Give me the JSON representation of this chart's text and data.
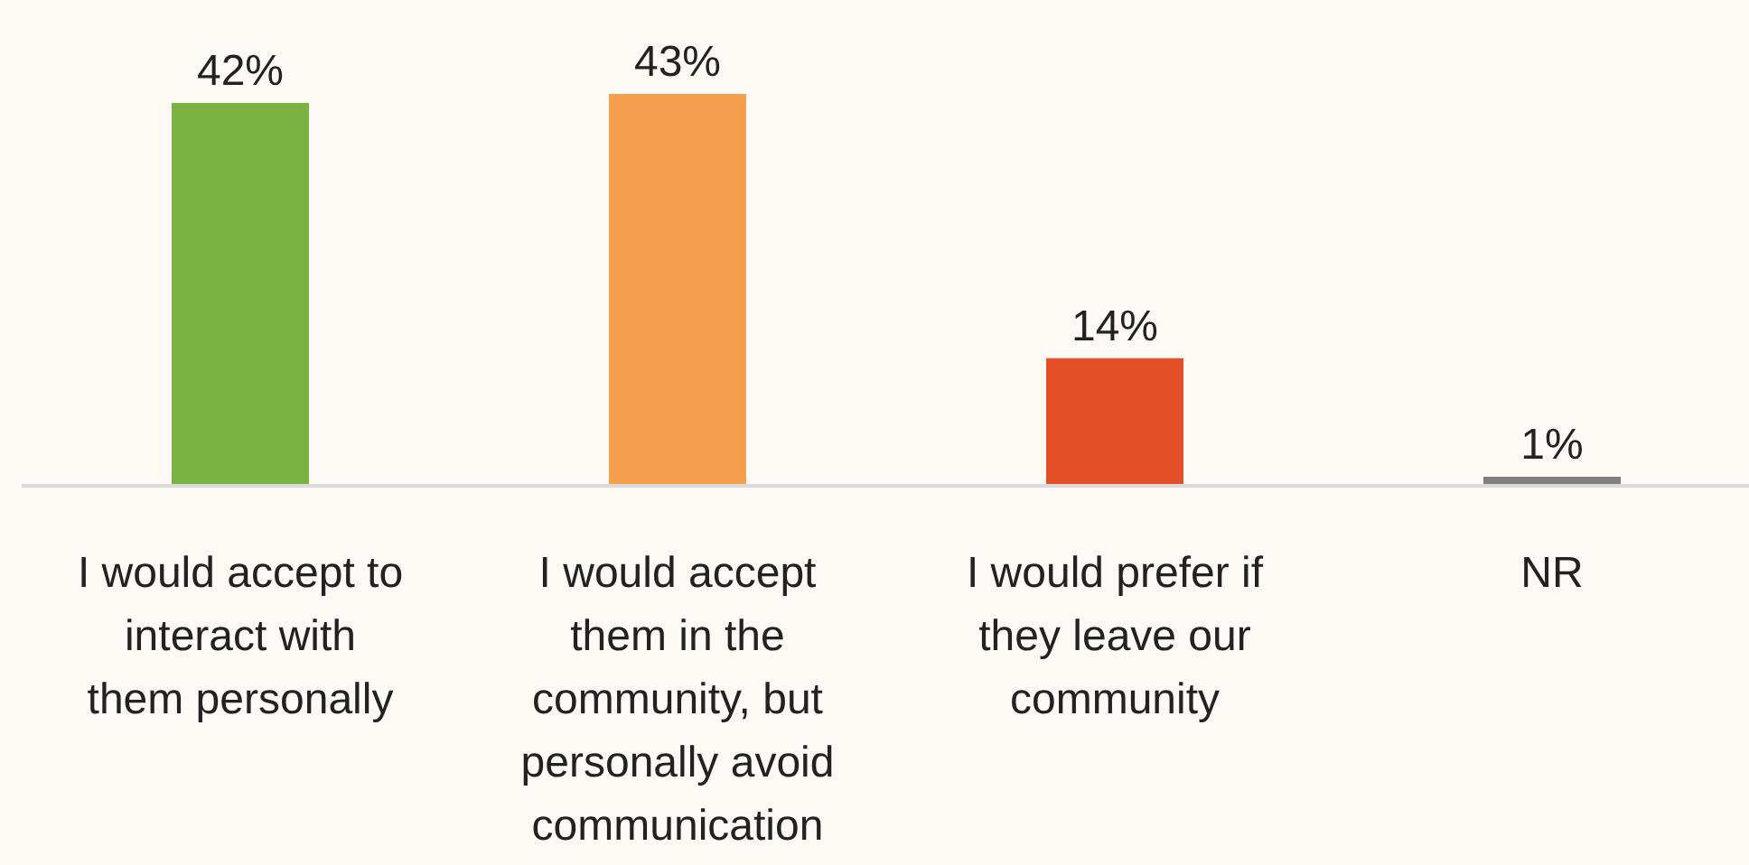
{
  "chart_data": {
    "type": "bar",
    "categories": [
      "I would accept to interact with them personally",
      "I would accept them in the community, but personally avoid communication",
      "I would prefer if they leave our community",
      "NR"
    ],
    "values": [
      42,
      43,
      14,
      1
    ],
    "colors": [
      "#7ab342",
      "#f4a04e",
      "#e34f26",
      "#808080"
    ],
    "value_labels": [
      "42%",
      "43%",
      "14%",
      "1%"
    ],
    "grid": false
  }
}
